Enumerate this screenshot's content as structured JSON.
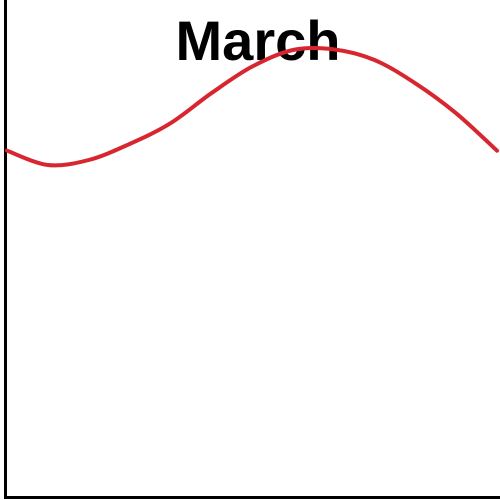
{
  "chart_data": {
    "type": "line",
    "title": "March",
    "xlabel": "",
    "ylabel": "",
    "grid": false,
    "series": [
      {
        "color": "#d7262f",
        "x": [
          0,
          1,
          2,
          3,
          4,
          5,
          6,
          7,
          8,
          9,
          10,
          11,
          12
        ],
        "y": [
          0.48,
          0.05,
          0.2,
          0.68,
          1.3,
          2.2,
          3.0,
          3.5,
          3.52,
          3.2,
          2.5,
          1.6,
          0.48
        ]
      }
    ],
    "xlim": [
      0,
      12
    ],
    "ylim": [
      -10,
      5
    ]
  }
}
